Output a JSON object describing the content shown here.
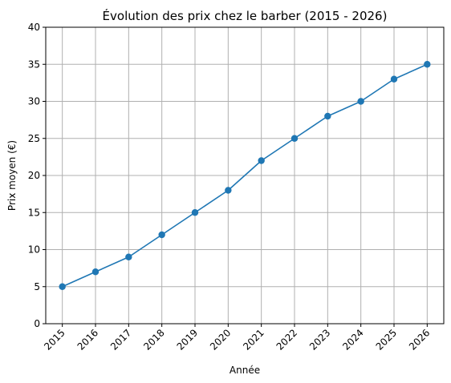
{
  "chart_data": {
    "type": "line",
    "title": "Évolution des prix chez le barber (2015 - 2026)",
    "xlabel": "Année",
    "ylabel": "Prix moyen (€)",
    "x": [
      "2015",
      "2016",
      "2017",
      "2018",
      "2019",
      "2020",
      "2021",
      "2022",
      "2023",
      "2024",
      "2025",
      "2026"
    ],
    "series": [
      {
        "values": [
          5,
          7,
          9,
          12,
          15,
          18,
          22,
          25,
          28,
          30,
          33,
          35
        ],
        "color": "#1f77b4",
        "marker": "circle"
      }
    ],
    "ylim": [
      0,
      40
    ],
    "yticks": [
      0,
      5,
      10,
      15,
      20,
      25,
      30,
      35,
      40
    ],
    "xtick_rotation": "45 degrees",
    "grid": true,
    "grid_color": "#b0b0b0",
    "legend": "none"
  }
}
